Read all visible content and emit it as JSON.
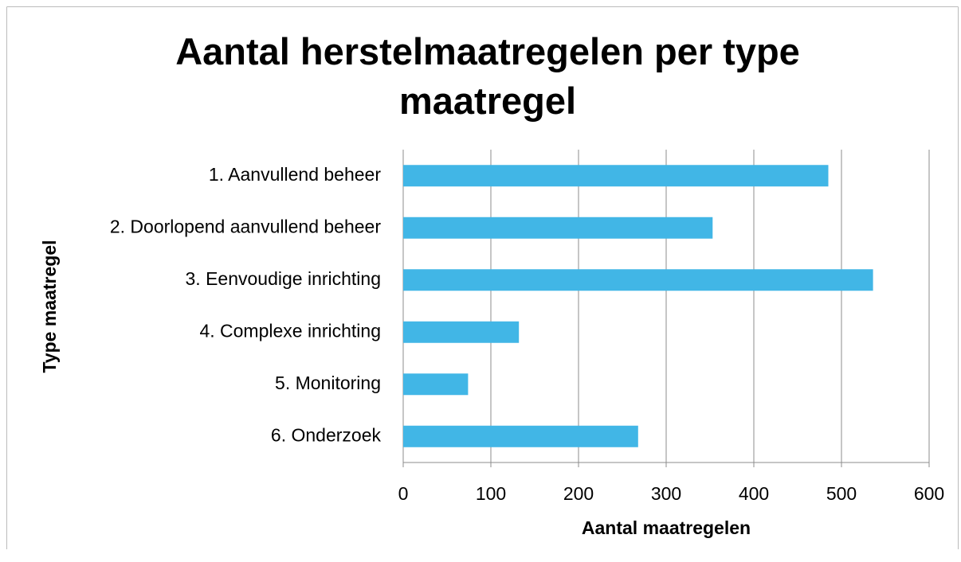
{
  "chart_data": {
    "type": "barh",
    "title": "Aantal herstelmaatregelen per type maatregel",
    "xlabel": "Aantal maatregelen",
    "ylabel": "Type maatregel",
    "categories": [
      "1. Aanvullend beheer",
      "2. Doorlopend aanvullend beheer",
      "3. Eenvoudige inrichting",
      "4. Complexe inrichting",
      "5. Monitoring",
      "6. Onderzoek"
    ],
    "values": [
      485,
      353,
      536,
      132,
      74,
      268
    ],
    "color": "#41b6e6",
    "xlim": [
      0,
      600
    ],
    "xticks": [
      0,
      100,
      200,
      300,
      400,
      500,
      600
    ],
    "grid": true
  }
}
